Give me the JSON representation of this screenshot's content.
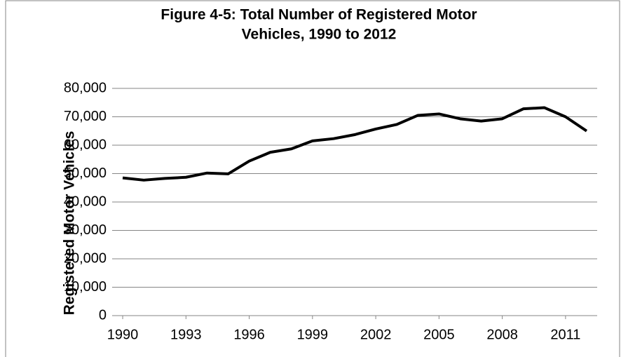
{
  "chart_data": {
    "type": "line",
    "title": [
      "Figure 4-5: Total Number of Registered Motor",
      "Vehicles, 1990 to 2012"
    ],
    "y_label": "Registered Motor Vehicles",
    "x": [
      1990,
      1991,
      1992,
      1993,
      1994,
      1995,
      1996,
      1997,
      1998,
      1999,
      2000,
      2001,
      2002,
      2003,
      2004,
      2005,
      2006,
      2007,
      2008,
      2009,
      2010,
      2011,
      2012
    ],
    "series": [
      {
        "color": "#000000",
        "values": [
          48500,
          47700,
          48300,
          48700,
          50200,
          49900,
          54400,
          57500,
          58700,
          61500,
          62300,
          63700,
          65700,
          67300,
          70500,
          71000,
          69300,
          68500,
          69300,
          72800,
          73200,
          70000,
          65000
        ]
      }
    ],
    "xlim": [
      1989.5,
      2012.5
    ],
    "xticks": [
      1990,
      1993,
      1996,
      1999,
      2002,
      2005,
      2008,
      2011
    ],
    "ylim": [
      0,
      80000
    ],
    "yticks": [
      0,
      {
        "value": 10000,
        "label": "10,000"
      },
      {
        "value": 20000,
        "label": "20,000"
      },
      {
        "value": 30000,
        "label": "30,000"
      },
      {
        "value": 40000,
        "label": "40,000"
      },
      {
        "value": 50000,
        "label": "50,000"
      },
      {
        "value": 60000,
        "label": "60,000"
      },
      {
        "value": 70000,
        "label": "70,000"
      },
      {
        "value": 80000,
        "label": "80,000"
      }
    ],
    "grid": true
  }
}
